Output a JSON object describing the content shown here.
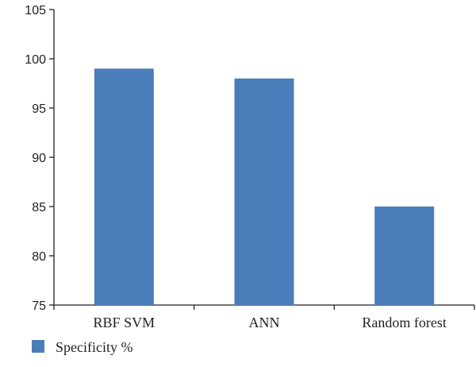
{
  "chart_data": {
    "type": "bar",
    "categories": [
      "RBF SVM",
      "ANN",
      "Random forest"
    ],
    "series": [
      {
        "name": "Specificity %",
        "values": [
          99,
          98,
          85
        ],
        "color": "#4a7ebb"
      }
    ],
    "ylim": [
      75,
      105
    ],
    "yticks": [
      75,
      80,
      85,
      90,
      95,
      100,
      105
    ],
    "title": "",
    "xlabel": "",
    "ylabel": "",
    "grid": false,
    "legend_position": "bottom-left"
  }
}
